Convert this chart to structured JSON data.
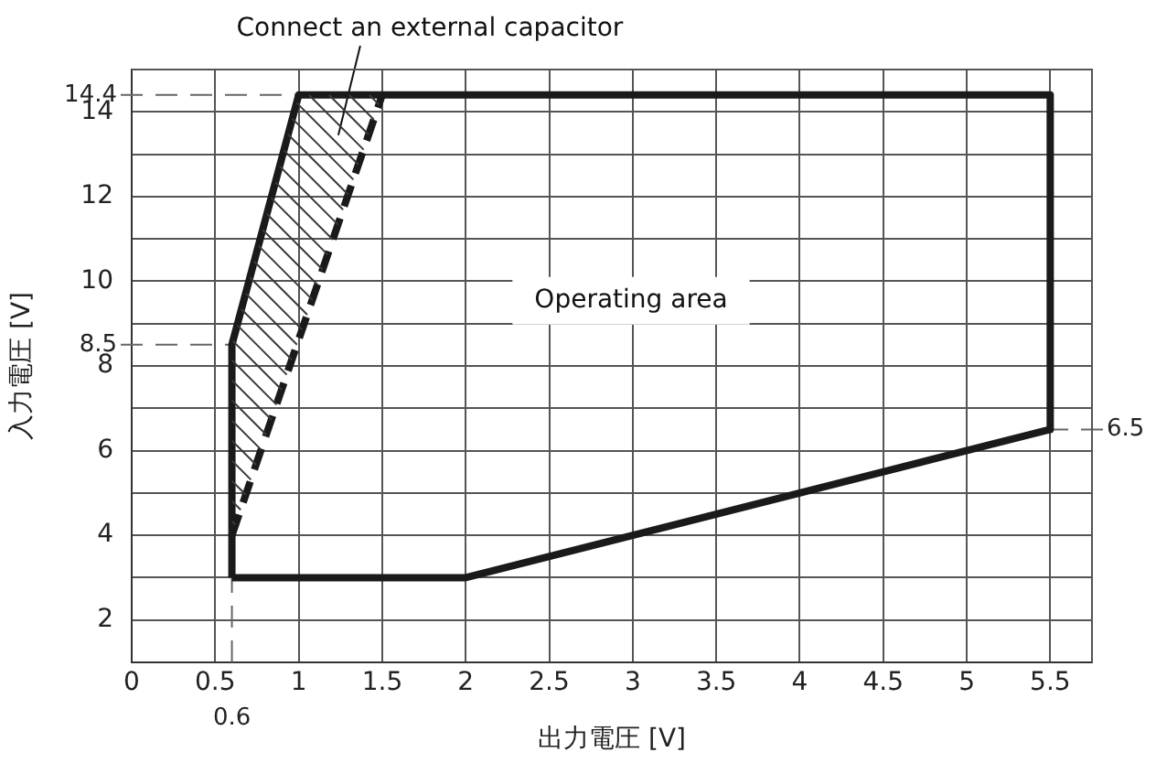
{
  "chart_data": {
    "type": "line",
    "xlabel": "出力電圧 [V]",
    "ylabel": "入力電圧 [V]",
    "xlim": [
      0,
      5.75
    ],
    "xticks": [
      0,
      0.5,
      1,
      1.5,
      2,
      2.5,
      3,
      3.5,
      4,
      4.5,
      5,
      5.5
    ],
    "ylim": [
      1,
      15
    ],
    "yticks": [
      {
        "value": 1,
        "label": null
      },
      2,
      {
        "value": 3,
        "label": null
      },
      4,
      {
        "value": 5,
        "label": null
      },
      6,
      {
        "value": 7,
        "label": null
      },
      8,
      {
        "value": 9,
        "label": null
      },
      10,
      {
        "value": 11,
        "label": null
      },
      12,
      {
        "value": 13,
        "label": null
      },
      14
    ],
    "series": [
      {
        "color": "#1a1a1a",
        "x": [
          0.6,
          0.6,
          1,
          5.5,
          5.5
        ],
        "values": [
          3,
          8.5,
          14.4,
          14.4,
          6.5
        ],
        "line_style": "solid"
      },
      {
        "color": "#1a1a1a",
        "x": [
          0.6,
          2,
          5.5
        ],
        "values": [
          3,
          3,
          6.5
        ],
        "line_style": "solid"
      },
      {
        "color": "#1a1a1a",
        "x": [
          0.6,
          1.5
        ],
        "values": [
          4,
          14.4
        ],
        "line_style": "dashed"
      }
    ],
    "ref_lines": [
      {
        "axis": "y",
        "value": 14.4,
        "label": "14.4",
        "line_style": "dashed",
        "color": "#666666"
      },
      {
        "axis": "y",
        "value": 8.5,
        "label": "8.5",
        "line_style": "dashed",
        "color": "#666666"
      },
      {
        "axis": "y",
        "value": 6.5,
        "label": "6.5",
        "line_style": "dashed",
        "color": "#666666"
      },
      {
        "axis": "x",
        "value": 0.6,
        "label": "0.6",
        "line_style": "dashed",
        "color": "#666666"
      }
    ],
    "annotations": [
      "Connect an external capacitor",
      "Operating area"
    ],
    "grid": true,
    "legend": false,
    "marker": "none"
  }
}
